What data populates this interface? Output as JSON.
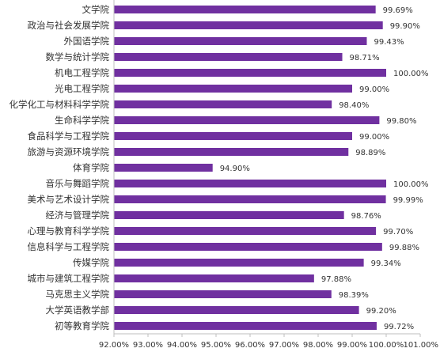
{
  "chart_data": {
    "type": "bar",
    "orientation": "horizontal",
    "categories": [
      "文学院",
      "政治与社会发展学院",
      "外国语学院",
      "数学与统计学院",
      "机电工程学院",
      "光电工程学院",
      "化学化工与材料科学学院",
      "生命科学学院",
      "食品科学与工程学院",
      "旅游与资源环境学院",
      "体育学院",
      "音乐与舞蹈学院",
      "美术与艺术设计学院",
      "经济与管理学院",
      "心理与教育科学学院",
      "信息科学与工程学院",
      "传媒学院",
      "城市与建筑工程学院",
      "马克思主义学院",
      "大学英语教学部",
      "初等教育学院"
    ],
    "values": [
      99.69,
      99.9,
      99.43,
      98.71,
      100.0,
      99.0,
      98.4,
      99.8,
      99.0,
      98.89,
      94.9,
      100.0,
      99.99,
      98.76,
      99.7,
      99.88,
      99.34,
      97.88,
      98.39,
      99.2,
      99.72
    ],
    "value_labels": [
      "99.69%",
      "99.90%",
      "99.43%",
      "98.71%",
      "100.00%",
      "99.00%",
      "98.40%",
      "99.80%",
      "99.00%",
      "98.89%",
      "94.90%",
      "100.00%",
      "99.99%",
      "98.76%",
      "99.70%",
      "99.88%",
      "99.34%",
      "97.88%",
      "98.39%",
      "99.20%",
      "99.72%"
    ],
    "xlim": [
      92,
      101
    ],
    "x_ticks": [
      "92.00%",
      "93.00%",
      "94.00%",
      "95.00%",
      "96.00%",
      "97.00%",
      "98.00%",
      "99.00%",
      "100.00%",
      "101.00%"
    ],
    "grid": false,
    "legend": "none",
    "bar_color": "#7030a0",
    "axis_color": "#bfbfbf",
    "title": "",
    "xlabel": "",
    "ylabel": ""
  }
}
